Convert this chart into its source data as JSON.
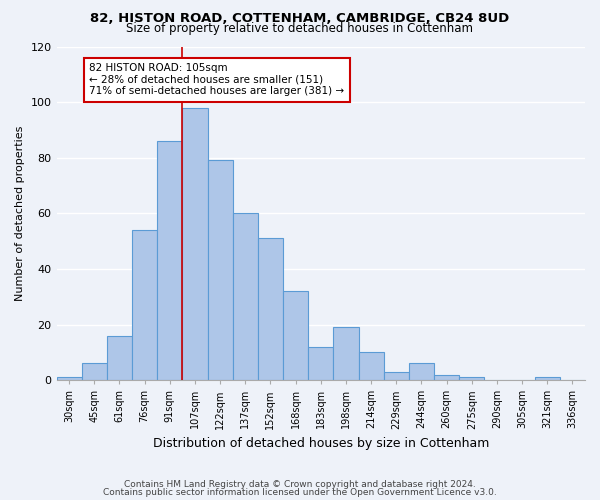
{
  "title1": "82, HISTON ROAD, COTTENHAM, CAMBRIDGE, CB24 8UD",
  "title2": "Size of property relative to detached houses in Cottenham",
  "xlabel": "Distribution of detached houses by size in Cottenham",
  "ylabel": "Number of detached properties",
  "bar_labels": [
    "30sqm",
    "45sqm",
    "61sqm",
    "76sqm",
    "91sqm",
    "107sqm",
    "122sqm",
    "137sqm",
    "152sqm",
    "168sqm",
    "183sqm",
    "198sqm",
    "214sqm",
    "229sqm",
    "244sqm",
    "260sqm",
    "275sqm",
    "290sqm",
    "305sqm",
    "321sqm",
    "336sqm"
  ],
  "bar_values": [
    1,
    6,
    16,
    54,
    86,
    98,
    79,
    60,
    51,
    32,
    12,
    19,
    10,
    3,
    6,
    2,
    1,
    0,
    0,
    1,
    0
  ],
  "bar_color": "#aec6e8",
  "bar_edge_color": "#5b9bd5",
  "vline_index": 5,
  "vline_color": "#cc0000",
  "annotation_title": "82 HISTON ROAD: 105sqm",
  "annotation_line1": "← 28% of detached houses are smaller (151)",
  "annotation_line2": "71% of semi-detached houses are larger (381) →",
  "annotation_box_edge_color": "#cc0000",
  "footer1": "Contains HM Land Registry data © Crown copyright and database right 2024.",
  "footer2": "Contains public sector information licensed under the Open Government Licence v3.0.",
  "ylim": [
    0,
    120
  ],
  "yticks": [
    0,
    20,
    40,
    60,
    80,
    100,
    120
  ],
  "background_color": "#eef2f9"
}
